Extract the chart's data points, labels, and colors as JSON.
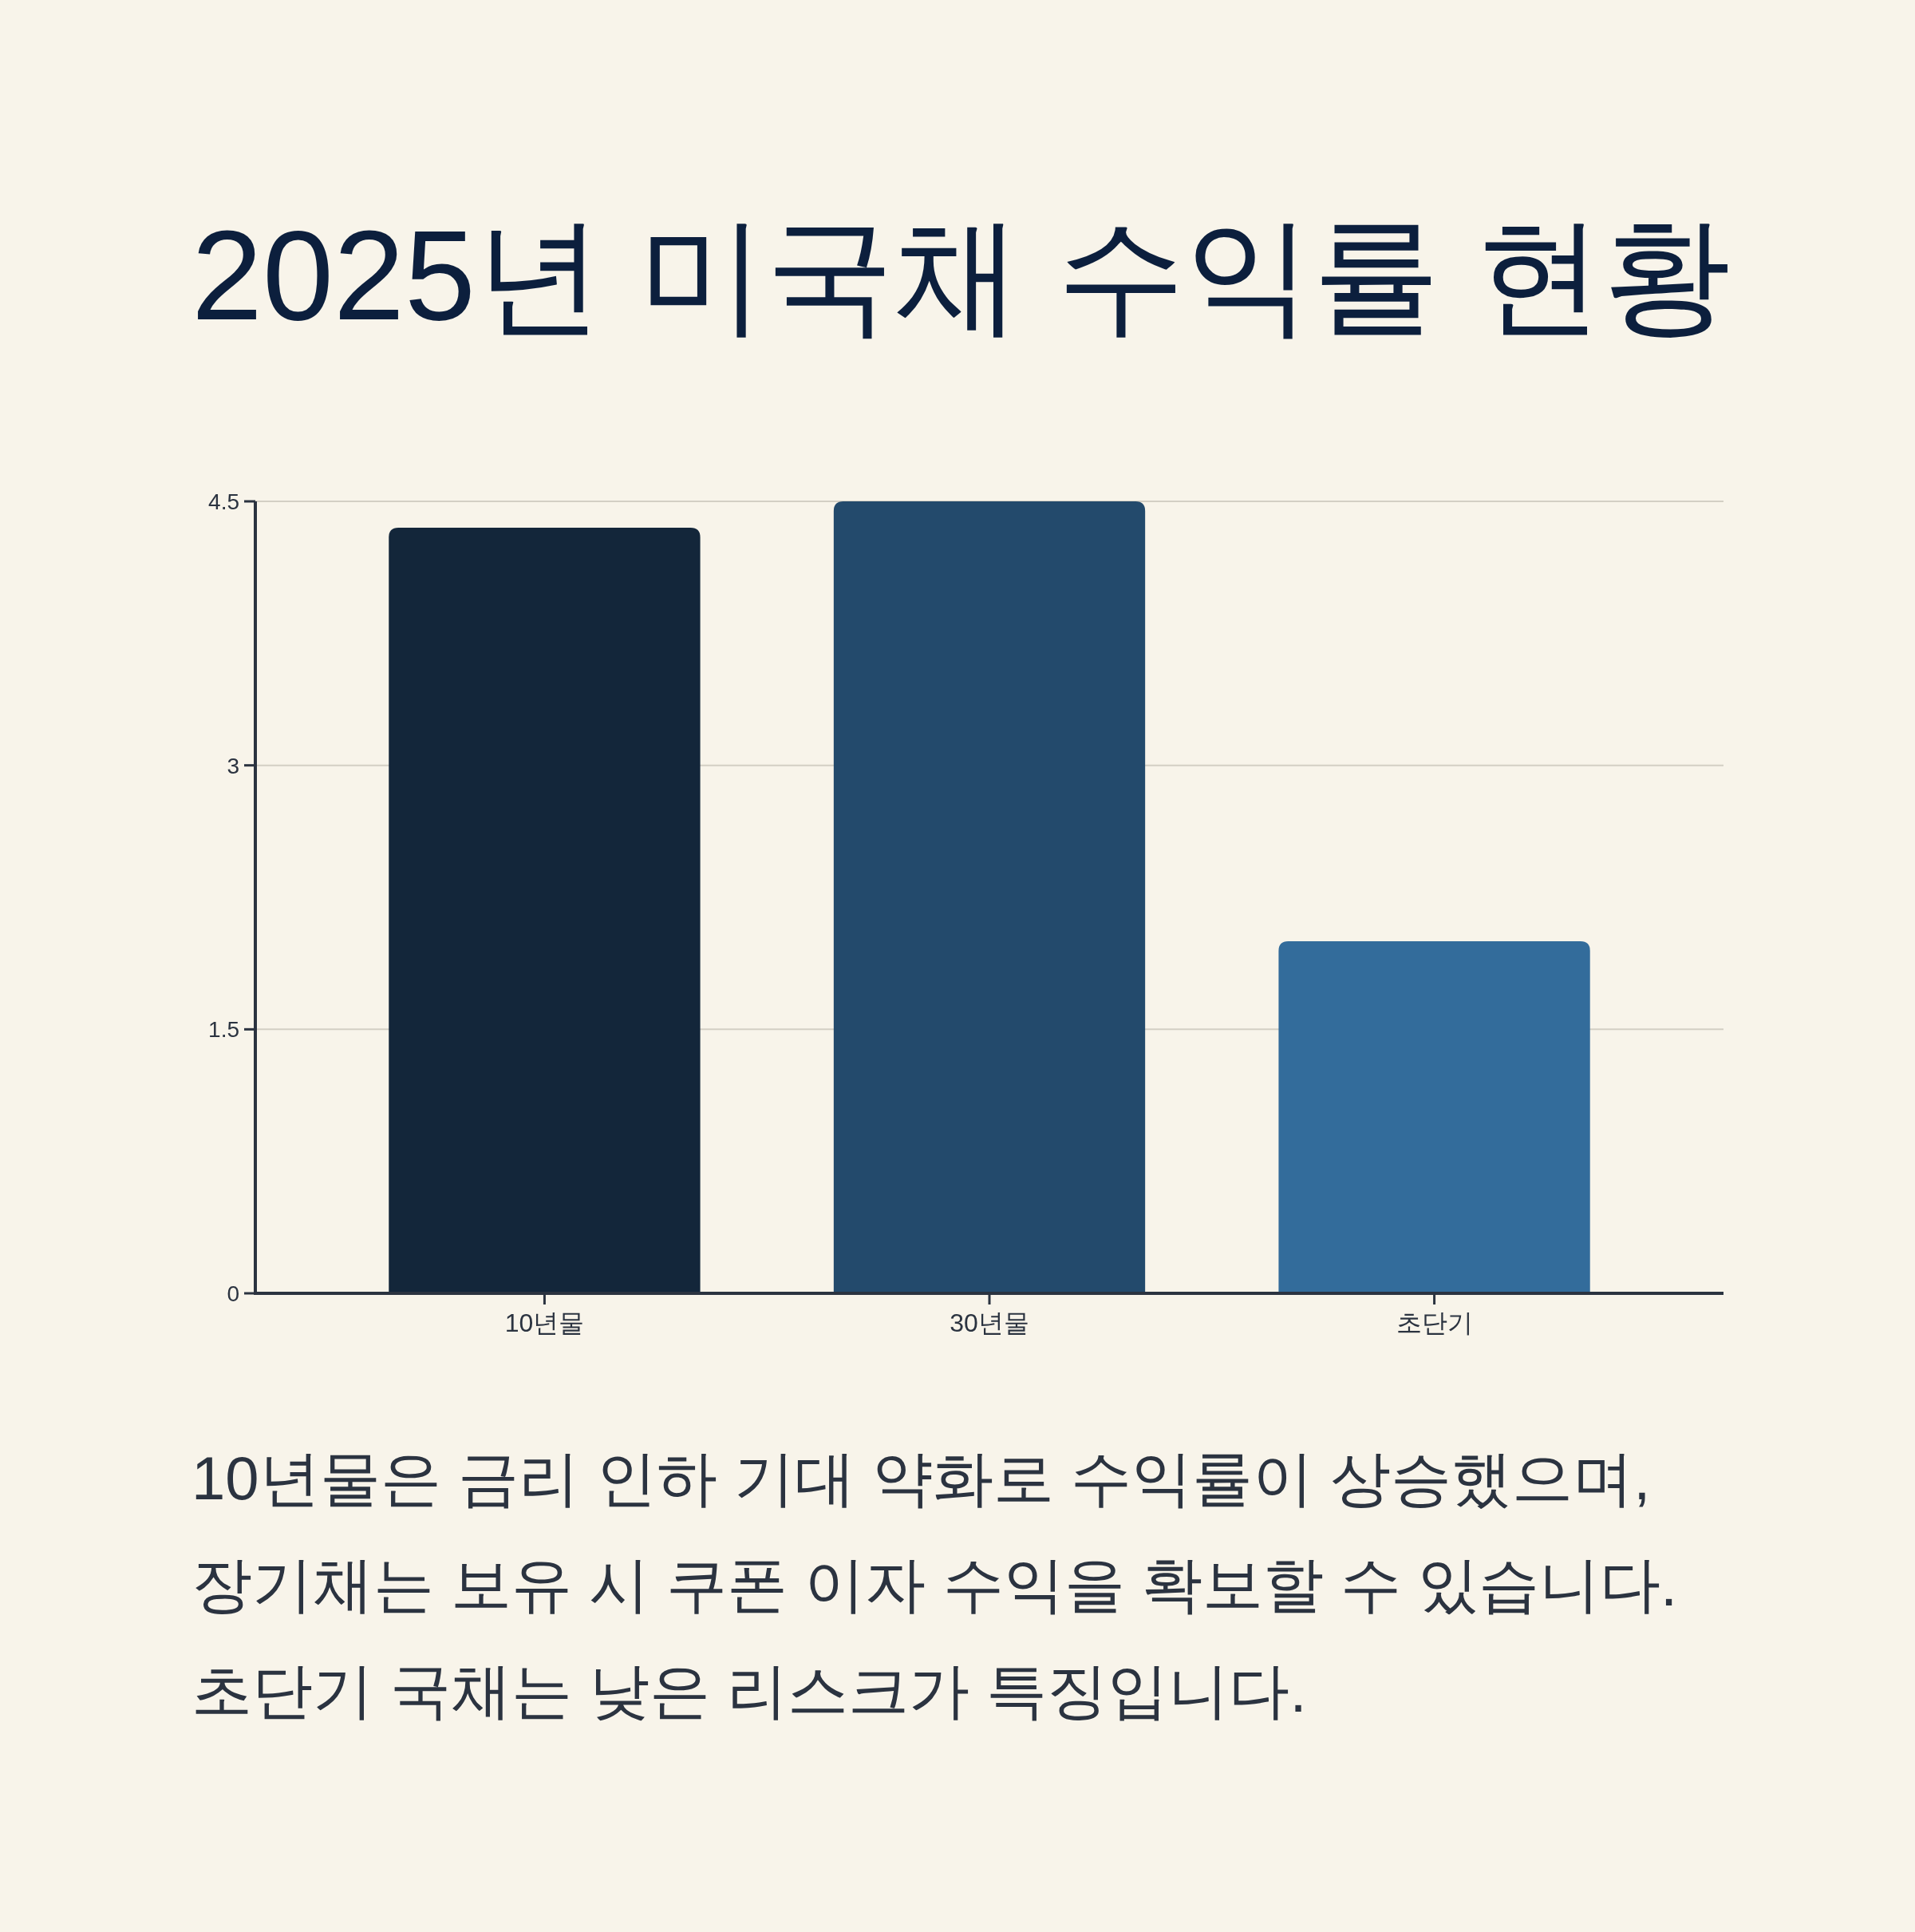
{
  "chart_data": {
    "type": "bar",
    "title": "2025년 미국채 수익률 현황",
    "categories": [
      "10년물",
      "30년물",
      "초단기"
    ],
    "values": [
      4.35,
      4.5,
      2.0
    ],
    "colors": [
      "#13263a",
      "#234a6c",
      "#336c9b"
    ],
    "ylim": [
      0,
      4.5
    ],
    "yticks": [
      0,
      1.5,
      3,
      4.5
    ],
    "grid": "y",
    "annotations": [
      "10년물은 금리 인하 기대 약화로 수익률이 상승했으며,",
      "장기채는 보유 시 쿠폰 이자 수익을 확보할 수 있습니다.",
      "초단기 국채는 낮은 리스크가 특징입니다."
    ]
  }
}
